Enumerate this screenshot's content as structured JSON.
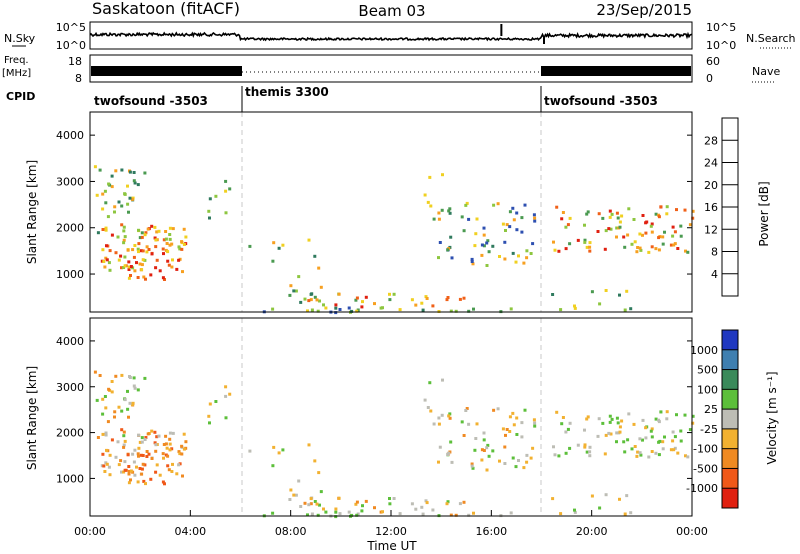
{
  "header": {
    "station": "Saskatoon (fitACF)",
    "beam": "Beam 03",
    "date": "23/Sep/2015"
  },
  "labels": {
    "nsky": "N.Sky",
    "nsearch": "N.Search",
    "freq": "Freq.",
    "freq_unit": "[MHz]",
    "nave": "Nave",
    "cpid": "CPID"
  },
  "cpid_segments": [
    {
      "name": "twofsound -3503",
      "start": 0,
      "end": 6
    },
    {
      "name": "themis 3300",
      "start": 6,
      "end": 18
    },
    {
      "name": "twofsound -3503",
      "start": 18,
      "end": 24
    }
  ],
  "axes": {
    "noise_left_ticks": [
      "10^5",
      "10^0"
    ],
    "noise_right_ticks": [
      "10^5",
      "10^0"
    ],
    "freq_left_ticks": [
      "18",
      "8"
    ],
    "freq_right_ticks": [
      "60",
      "0"
    ]
  },
  "chart_data": [
    {
      "type": "heatmap",
      "name": "power",
      "xlabel": "",
      "ylabel": "Slant Range [km]",
      "xlim": [
        0,
        24
      ],
      "ylim": [
        180,
        4500
      ],
      "yticks": [
        1000,
        2000,
        3000,
        4000
      ],
      "colorbar": {
        "label": "Power [dB]",
        "ticks": [
          "4",
          "8",
          "12",
          "16",
          "20",
          "24",
          "28"
        ],
        "colors": [
          "#1010e6",
          "#2d4fb0",
          "#2f7a5e",
          "#4a9a50",
          "#8dc63f",
          "#f0d020",
          "#f7a020",
          "#f06018",
          "#e02010"
        ]
      },
      "regions": [
        {
          "t0": 0.2,
          "t1": 2.0,
          "r0": 2000,
          "r1": 3400,
          "level": "16-24"
        },
        {
          "t0": 1.3,
          "t1": 3.8,
          "r0": 1000,
          "r1": 1800,
          "level": "24-28"
        },
        {
          "t0": 8.5,
          "t1": 9.3,
          "r0": 1200,
          "r1": 1800,
          "level": "8-16"
        },
        {
          "t0": 13.8,
          "t1": 17.8,
          "r0": 1200,
          "r1": 2600,
          "level": "8-16"
        },
        {
          "t0": 18.4,
          "t1": 24,
          "r0": 1500,
          "r1": 2500,
          "level": "16-28"
        },
        {
          "t0": 8.5,
          "t1": 15.5,
          "r0": 250,
          "r1": 600,
          "level": "16-28"
        }
      ]
    },
    {
      "type": "heatmap",
      "name": "velocity",
      "xlabel": "Time UT",
      "ylabel": "Slant Range [km]",
      "xlim": [
        0,
        24
      ],
      "ylim": [
        180,
        4500
      ],
      "yticks": [
        1000,
        2000,
        3000,
        4000
      ],
      "xticks": [
        "00:00",
        "04:00",
        "08:00",
        "12:00",
        "16:00",
        "20:00",
        "00:00"
      ],
      "colorbar": {
        "label": "Velocity [m s⁻¹]",
        "ticks": [
          "1000",
          "500",
          "100",
          "25",
          "-25",
          "-100",
          "-500",
          "-1000"
        ],
        "colors": [
          "#2038c0",
          "#3f7fb0",
          "#3a8a5a",
          "#5cbf3a",
          "#bdbdb5",
          "#f2b130",
          "#f08a22",
          "#f05818",
          "#e02010"
        ]
      }
    }
  ]
}
